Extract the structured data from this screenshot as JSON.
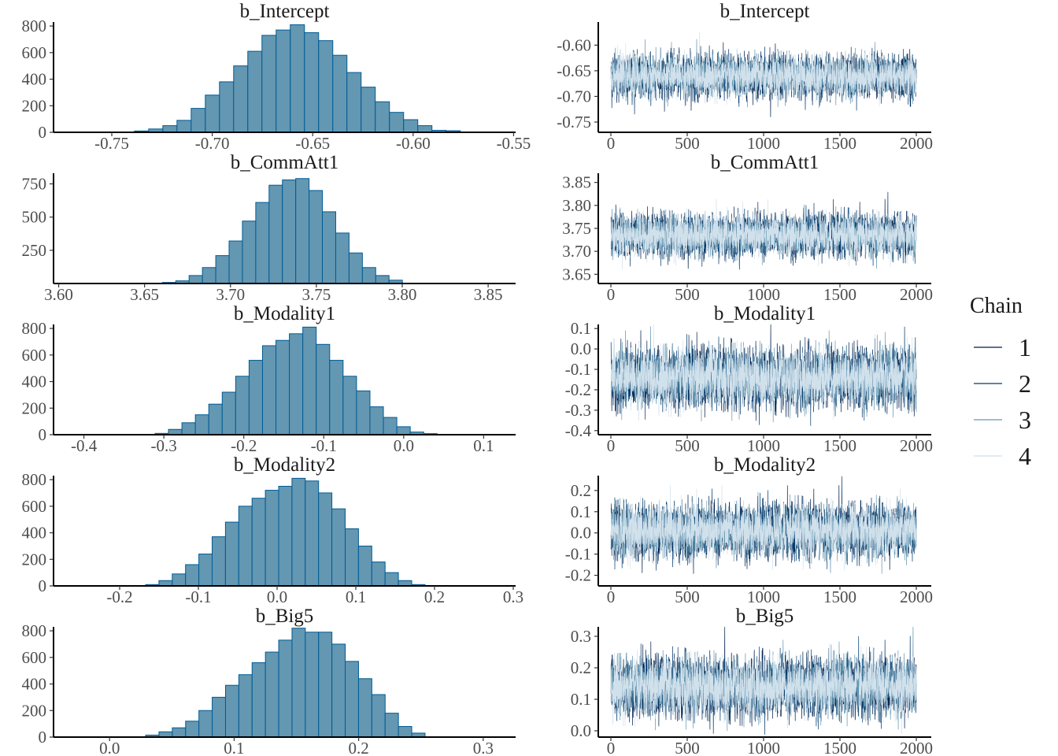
{
  "chart_data": {
    "type": "bar",
    "description_type": "mcmc histogram + trace plots",
    "colors": {
      "bar_fill": "#6497b1",
      "bar_stroke": "#005b96",
      "chains": [
        "#011f4b",
        "#03396c",
        "#6497b1",
        "#d1e1ec"
      ]
    },
    "legend": {
      "title": "Chain",
      "entries": [
        "1",
        "2",
        "3",
        "4"
      ],
      "placement": "right"
    },
    "panels": [
      {
        "name": "b_Intercept",
        "hist": {
          "xlim": [
            -0.779,
            -0.549
          ],
          "ylim": [
            0,
            830
          ],
          "xticks": [
            -0.75,
            -0.7,
            -0.65,
            -0.6,
            -0.55
          ],
          "xtick_labels": [
            "-0.75",
            "-0.70",
            "-0.65",
            "-0.60",
            "-0.55"
          ],
          "yticks": [
            0,
            200,
            400,
            600,
            800
          ],
          "ytick_labels": [
            "0",
            "200",
            "400",
            "600",
            "800"
          ],
          "bin_start": -0.7387,
          "bin_width": 0.00705,
          "counts": [
            10,
            25,
            50,
            90,
            180,
            280,
            380,
            500,
            610,
            730,
            770,
            810,
            750,
            690,
            580,
            450,
            340,
            230,
            150,
            95,
            50,
            15,
            12
          ]
        },
        "trace": {
          "ylim": [
            -0.77,
            -0.555
          ],
          "yticks": [
            -0.75,
            -0.7,
            -0.65,
            -0.6
          ],
          "ytick_labels": [
            "-0.75",
            "-0.70",
            "-0.65",
            "-0.60"
          ],
          "xticks": [
            0,
            500,
            1000,
            1500,
            2000
          ],
          "xtick_labels": [
            "0",
            "500",
            "1000",
            "1500",
            "2000"
          ],
          "iterations": 2000,
          "mean": -0.66,
          "sd": 0.02
        }
      },
      {
        "name": "b_CommAtt1",
        "hist": {
          "xlim": [
            3.597,
            3.866
          ],
          "ylim": [
            0,
            830
          ],
          "xticks": [
            3.6,
            3.65,
            3.7,
            3.75,
            3.8,
            3.85
          ],
          "xtick_labels": [
            "3.60",
            "3.65",
            "3.70",
            "3.75",
            "3.80",
            "3.85"
          ],
          "yticks": [
            250,
            500,
            750
          ],
          "ytick_labels": [
            "250",
            "500",
            "750"
          ],
          "bin_start": 3.6604,
          "bin_width": 0.00776,
          "counts": [
            8,
            20,
            60,
            120,
            210,
            320,
            470,
            610,
            740,
            780,
            790,
            700,
            540,
            380,
            230,
            120,
            60,
            25
          ]
        },
        "trace": {
          "ylim": [
            3.63,
            3.87
          ],
          "yticks": [
            3.65,
            3.7,
            3.75,
            3.8,
            3.85
          ],
          "ytick_labels": [
            "3.65",
            "3.70",
            "3.75",
            "3.80",
            "3.85"
          ],
          "xticks": [
            0,
            500,
            1000,
            1500,
            2000
          ],
          "xtick_labels": [
            "0",
            "500",
            "1000",
            "1500",
            "2000"
          ],
          "iterations": 2000,
          "mean": 3.735,
          "sd": 0.022
        }
      },
      {
        "name": "b_Modality1",
        "hist": {
          "xlim": [
            -0.438,
            0.14
          ],
          "ylim": [
            0,
            830
          ],
          "xticks": [
            -0.4,
            -0.3,
            -0.2,
            -0.1,
            0.0,
            0.1
          ],
          "xtick_labels": [
            "-0.4",
            "-0.3",
            "-0.2",
            "-0.1",
            "0.0",
            "0.1"
          ],
          "yticks": [
            0,
            200,
            400,
            600,
            800
          ],
          "ytick_labels": [
            "0",
            "200",
            "400",
            "600",
            "800"
          ],
          "bin_start": -0.311,
          "bin_width": 0.0168,
          "counts": [
            10,
            40,
            90,
            150,
            230,
            320,
            440,
            560,
            670,
            710,
            760,
            810,
            680,
            560,
            440,
            330,
            210,
            130,
            60,
            20,
            8
          ]
        },
        "trace": {
          "ylim": [
            -0.42,
            0.12
          ],
          "yticks": [
            -0.4,
            -0.3,
            -0.2,
            -0.1,
            0.0,
            0.1
          ],
          "ytick_labels": [
            "-0.4",
            "-0.3",
            "-0.2",
            "-0.1",
            "0.0",
            "0.1"
          ],
          "xticks": [
            0,
            500,
            1000,
            1500,
            2000
          ],
          "xtick_labels": [
            "0",
            "500",
            "1000",
            "1500",
            "2000"
          ],
          "iterations": 2000,
          "mean": -0.14,
          "sd": 0.07
        }
      },
      {
        "name": "b_Modality2",
        "hist": {
          "xlim": [
            -0.284,
            0.303
          ],
          "ylim": [
            0,
            830
          ],
          "xticks": [
            -0.2,
            -0.1,
            0.0,
            0.1,
            0.2,
            0.3
          ],
          "xtick_labels": [
            "-0.2",
            "-0.1",
            "0.0",
            "0.1",
            "0.2",
            "0.3"
          ],
          "yticks": [
            0,
            200,
            400,
            600,
            800
          ],
          "ytick_labels": [
            "0",
            "200",
            "400",
            "600",
            "800"
          ],
          "bin_start": -0.167,
          "bin_width": 0.0169,
          "counts": [
            10,
            40,
            90,
            160,
            240,
            370,
            480,
            600,
            660,
            720,
            750,
            810,
            790,
            700,
            580,
            430,
            300,
            180,
            100,
            40,
            10
          ]
        },
        "trace": {
          "ylim": [
            -0.25,
            0.27
          ],
          "yticks": [
            -0.2,
            -0.1,
            0.0,
            0.1,
            0.2
          ],
          "ytick_labels": [
            "-0.2",
            "-0.1",
            "0.0",
            "0.1",
            "0.2"
          ],
          "xticks": [
            0,
            500,
            1000,
            1500,
            2000
          ],
          "xtick_labels": [
            "0",
            "500",
            "1000",
            "1500",
            "2000"
          ],
          "iterations": 2000,
          "mean": 0.01,
          "sd": 0.06
        }
      },
      {
        "name": "b_Big5",
        "hist": {
          "xlim": [
            -0.045,
            0.326
          ],
          "ylim": [
            0,
            830
          ],
          "xticks": [
            0.0,
            0.1,
            0.2,
            0.3
          ],
          "xtick_labels": [
            "0.0",
            "0.1",
            "0.2",
            "0.3"
          ],
          "yticks": [
            0,
            200,
            400,
            600,
            800
          ],
          "ytick_labels": [
            "0",
            "200",
            "400",
            "600",
            "800"
          ],
          "bin_start": 0.029,
          "bin_width": 0.01068,
          "counts": [
            15,
            40,
            70,
            120,
            200,
            300,
            390,
            470,
            560,
            640,
            730,
            820,
            790,
            790,
            700,
            570,
            440,
            320,
            180,
            80,
            30
          ]
        },
        "trace": {
          "ylim": [
            -0.02,
            0.33
          ],
          "yticks": [
            0.0,
            0.1,
            0.2,
            0.3
          ],
          "ytick_labels": [
            "0.0",
            "0.1",
            "0.2",
            "0.3"
          ],
          "xticks": [
            0,
            500,
            1000,
            1500,
            2000
          ],
          "xtick_labels": [
            "0",
            "500",
            "1000",
            "1500",
            "2000"
          ],
          "iterations": 2000,
          "mean": 0.14,
          "sd": 0.045
        }
      }
    ]
  }
}
